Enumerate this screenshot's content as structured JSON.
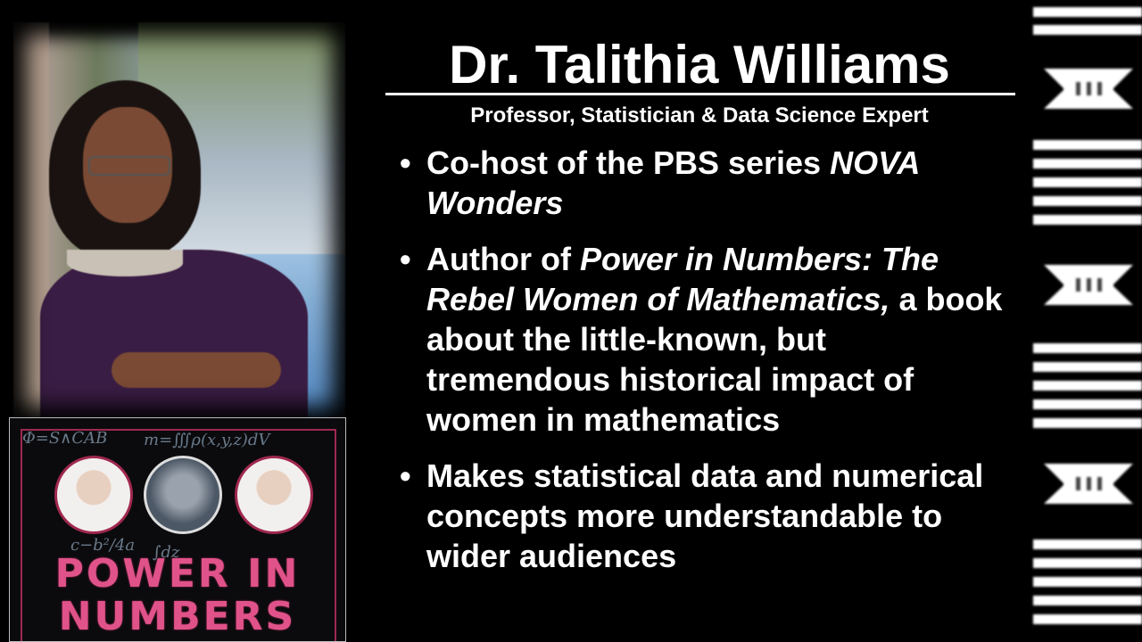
{
  "slide": {
    "title": "Dr. Talithia Williams",
    "subtitle": "Professor, Statistician & Data Science Expert",
    "bullets": [
      {
        "parts": [
          {
            "text": "Co-host of the PBS series ",
            "italic": false
          },
          {
            "text": "NOVA Wonders",
            "italic": true
          }
        ]
      },
      {
        "parts": [
          {
            "text": "Author of ",
            "italic": false
          },
          {
            "text": "Power in Numbers: The Rebel Women of Mathematics,",
            "italic": true
          },
          {
            "text": " a book about the little-known, but tremendous historical impact of women in mathematics",
            "italic": false
          }
        ]
      },
      {
        "parts": [
          {
            "text": "Makes statistical data and numerical concepts more understandable to wider audiences",
            "italic": false
          }
        ]
      }
    ],
    "bullet_symbol": "•"
  },
  "book_cover": {
    "title_line1": "POWER IN",
    "title_line2": "NUMBERS",
    "formulas": [
      "Φ=S∧CAB",
      "m=∭ρ(x,y,z)dV",
      "c−b²/4a",
      "∫dz"
    ],
    "accent_color": "#d8407a"
  },
  "photo": {
    "subject": "portrait-photo"
  },
  "decor": {
    "color": "#ffffff"
  }
}
